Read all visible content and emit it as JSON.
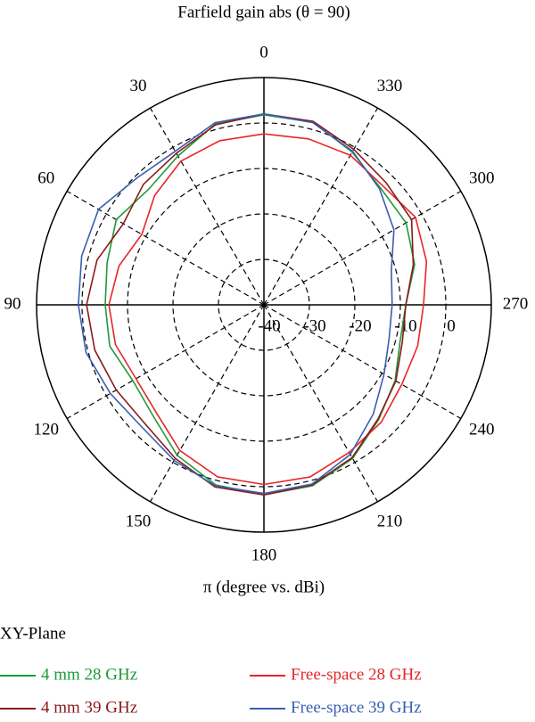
{
  "chart_data": {
    "type": "polar",
    "title": "Farfield gain abs (θ = 90)",
    "xlabel": "π (degree vs. dBi)",
    "legend_title": "XY-Plane",
    "zero_location": "top",
    "direction": "counterclockwise",
    "rlim": [
      -40,
      10
    ],
    "rticks": [
      -40,
      -30,
      -20,
      -10,
      0
    ],
    "thetaticks": [
      0,
      30,
      60,
      90,
      120,
      150,
      180,
      210,
      240,
      270,
      300,
      330
    ],
    "theta": [
      0,
      15,
      30,
      45,
      60,
      75,
      90,
      105,
      120,
      135,
      150,
      165,
      180,
      195,
      210,
      225,
      240,
      255,
      270,
      285,
      300,
      315,
      330,
      345
    ],
    "series": [
      {
        "name": "4 mm 28 GHz",
        "color": "#1f9a3c",
        "values": [
          1.8,
          1.2,
          -2.2,
          -4.1,
          -2.5,
          -4.3,
          -5.1,
          -4.9,
          -6.7,
          -5.5,
          -1.8,
          1.0,
          1.8,
          1.2,
          -1.0,
          -4.3,
          -6.7,
          -9.0,
          -8.8,
          -5.7,
          -3.9,
          -3.7,
          -1.2,
          1.6
        ]
      },
      {
        "name": "Free-space 28 GHz",
        "color": "#e8262a",
        "values": [
          -2.4,
          -2.6,
          -3.5,
          -6.0,
          -9.0,
          -7.0,
          -5.9,
          -6.2,
          -7.5,
          -6.5,
          -3.0,
          -0.8,
          -0.5,
          -0.8,
          -2.5,
          -3.5,
          -5.0,
          -5.0,
          -4.9,
          -3.0,
          -1.5,
          -3.0,
          -2.0,
          -2.2
        ]
      },
      {
        "name": "4 mm 39 GHz",
        "color": "#8b1a1a",
        "values": [
          2.0,
          1.0,
          -1.5,
          -2.5,
          -4.3,
          -2.0,
          -1.0,
          -1.5,
          -2.5,
          -3.0,
          -1.0,
          1.5,
          1.8,
          1.0,
          -1.2,
          -4.5,
          -6.5,
          -8.5,
          -8.8,
          -6.0,
          -2.5,
          -2.0,
          -0.5,
          1.8
        ]
      },
      {
        "name": "Free-space 39 GHz",
        "color": "#3a5fb0",
        "values": [
          2.0,
          1.5,
          -1.0,
          -0.5,
          2.0,
          1.5,
          0.8,
          0.5,
          -1.0,
          -2.0,
          -0.5,
          1.2,
          1.5,
          0.8,
          -2.0,
          -6.0,
          -9.5,
          -11.5,
          -11.8,
          -11.0,
          -7.0,
          -4.0,
          -1.0,
          1.5
        ]
      }
    ]
  }
}
